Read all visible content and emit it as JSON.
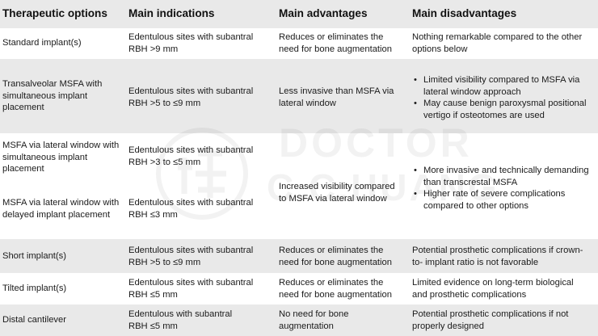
{
  "header": {
    "col1": "Therapeutic options",
    "col2": "Main indications",
    "col3": "Main advantages",
    "col4": "Main disadvantages"
  },
  "rows": [
    {
      "option": [
        "Standard implant(s)"
      ],
      "indication": [
        "Edentulous sites with subantral",
        "RBH >9 mm"
      ],
      "advantage": [
        "Reduces or eliminates the",
        "need for bone augmentation"
      ],
      "disadvantage": [
        "Nothing remarkable compared to the other",
        "options below"
      ]
    },
    {
      "option": [
        "Transalveolar MSFA with",
        "simultaneous implant",
        "placement"
      ],
      "indication": [
        "Edentulous sites with subantral",
        "RBH >5 to ≤9 mm"
      ],
      "advantage": [
        "Less invasive than MSFA via",
        "lateral window"
      ],
      "disadvantage_bullets": [
        [
          "Limited visibility compared to MSFA via",
          "lateral window approach"
        ],
        [
          "May cause benign paroxysmal positional",
          "vertigo if osteotomes are used"
        ]
      ]
    },
    {
      "option": [
        "MSFA via lateral window with",
        "simultaneous implant",
        "placement"
      ],
      "indication": [
        "Edentulous sites with subantral",
        "RBH >3 to ≤5 mm"
      ]
    },
    {
      "option": [
        "MSFA via lateral window with",
        "delayed implant placement"
      ],
      "indication": [
        "Edentulous sites with subantral",
        "RBH ≤3 mm"
      ]
    },
    {
      "merged_advantage": [
        "Increased visibility compared",
        "to MSFA via lateral window"
      ],
      "merged_disadvantage_bullets": [
        [
          "More invasive and technically demanding",
          "than transcrestal MSFA"
        ],
        [
          "Higher rate of severe complications",
          "compared to other options"
        ]
      ]
    },
    {
      "option": [
        "Short implant(s)"
      ],
      "indication": [
        "Edentulous sites with subantral",
        "RBH >5 to ≤9 mm"
      ],
      "advantage": [
        "Reduces or eliminates the",
        "need for bone augmentation"
      ],
      "disadvantage": [
        "Potential prosthetic complications if crown-",
        "to- implant ratio is not favorable"
      ]
    },
    {
      "option": [
        "Tilted implant(s)"
      ],
      "indication": [
        "Edentulous sites with subantral",
        "RBH ≤5 mm"
      ],
      "advantage": [
        "Reduces or eliminates the",
        "need for bone augmentation"
      ],
      "disadvantage": [
        "Limited evidence on long-term biological",
        "and prosthetic complications"
      ]
    },
    {
      "option": [
        "Distal cantilever"
      ],
      "indication": [
        "Edentulous with subantral",
        "RBH ≤5 mm"
      ],
      "advantage": [
        "No need for bone",
        "augmentation"
      ],
      "disadvantage": [
        "Potential prosthetic complications if not",
        "properly designed"
      ]
    }
  ],
  "watermark": {
    "line1": "DOCTOR",
    "line2": "C.C.HUANG"
  }
}
